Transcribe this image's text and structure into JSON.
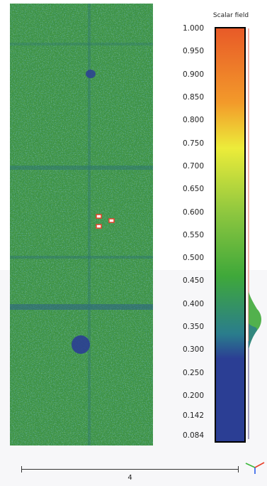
{
  "scalar_field": {
    "title": "Scalar field",
    "ticks": [
      "1.000",
      "0.950",
      "0.900",
      "0.850",
      "0.800",
      "0.750",
      "0.700",
      "0.650",
      "0.600",
      "0.550",
      "0.500",
      "0.450",
      "0.400",
      "0.350",
      "0.300",
      "0.250",
      "0.200",
      "0.142",
      "0.084"
    ],
    "min": 0.084,
    "max": 1.0,
    "colors": {
      "red": "#e85a28",
      "orange": "#f39a2a",
      "yellow": "#ecec3a",
      "light_green": "#8cc63f",
      "green": "#3fa83a",
      "teal": "#2a7d8c",
      "blue": "#2b3e94"
    }
  },
  "scale_bar": {
    "label": "4"
  },
  "axis_icon": {
    "name": "xyz-axis-icon",
    "colors": {
      "x": "#e8402a",
      "y": "#3ab83a",
      "z": "#2a5ee8"
    }
  }
}
